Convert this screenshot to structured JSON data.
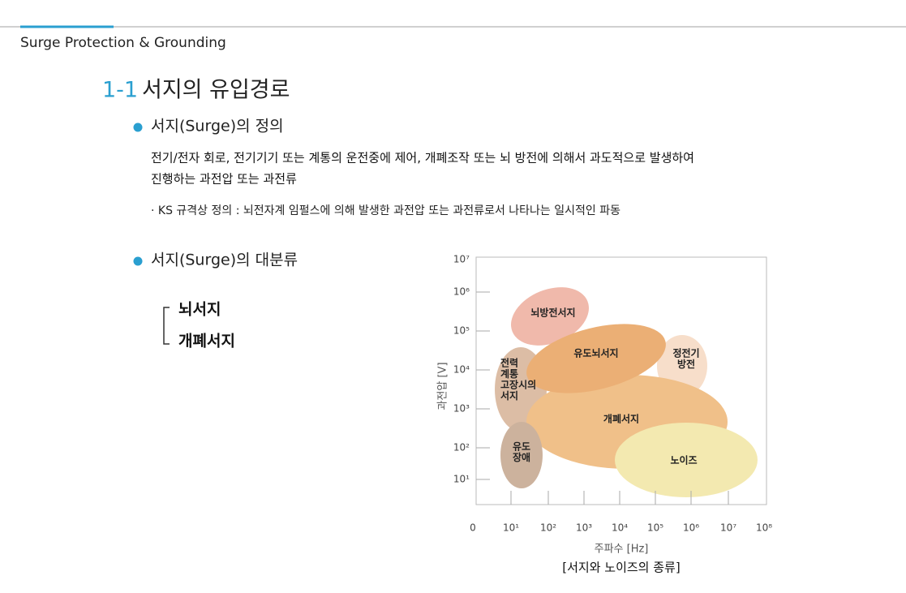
{
  "header": {
    "title": "Surge Protection & Grounding"
  },
  "section": {
    "number": "1-1",
    "title": "서지의 유입경로"
  },
  "definition": {
    "heading": "서지(Surge)의 정의",
    "body": [
      "전기/전자 회로, 전기기기 또는 계통의 운전중에 제어, 개폐조작 또는 뇌 방전에 의해서 과도적으로 발생하여",
      "진행하는 과전압 또는 과전류"
    ],
    "note": "· KS 규격상 정의 : 뇌전자계 임펄스에 의해 발생한 과전압 또는 과전류로서 나타나는 일시적인 파동"
  },
  "classification": {
    "heading": "서지(Surge)의 대분류",
    "items": [
      "뇌서지",
      "개폐서지"
    ]
  },
  "figure": {
    "y_axis_label": "과전압 [V]",
    "x_axis_label": "주파수 [Hz]",
    "y_ticks": [
      "10⁷",
      "10⁶",
      "10⁵",
      "10⁴",
      "10³",
      "10²",
      "10¹"
    ],
    "x_ticks": [
      "0",
      "10¹",
      "10²",
      "10³",
      "10⁴",
      "10⁵",
      "10⁶",
      "10⁷",
      "10⁸"
    ],
    "regions": [
      {
        "lines": [
          "뇌방전서지"
        ]
      },
      {
        "lines": [
          "유도뇌서지"
        ]
      },
      {
        "lines": [
          "전력",
          "계통",
          "고장시의",
          "서지"
        ]
      },
      {
        "lines": [
          "정전기",
          "방전"
        ]
      },
      {
        "lines": [
          "개폐서지"
        ]
      },
      {
        "lines": [
          "유도",
          "장애"
        ]
      },
      {
        "lines": [
          "노이즈"
        ]
      }
    ],
    "caption": "[서지와 노이즈의 종류]"
  }
}
